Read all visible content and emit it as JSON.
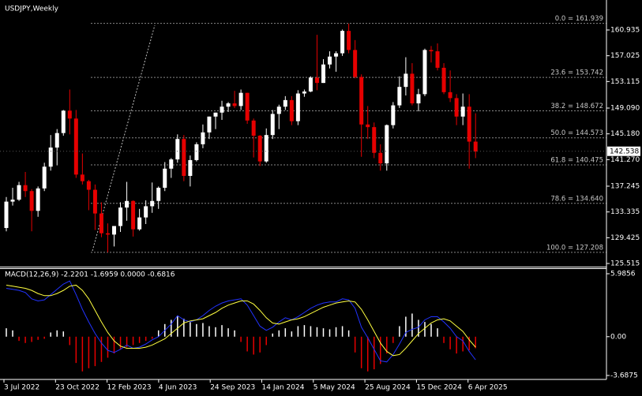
{
  "chart_data": [
    {
      "type": "candlestick",
      "title": "USDJPY,Weekly",
      "up_color": "#ffffff",
      "down_color": "#e60000",
      "ylim": [
        125.16,
        165.48
      ],
      "yticks": [
        160.935,
        157.025,
        153.115,
        {
          "value": 149.09,
          "label": "149.090"
        },
        {
          "value": 145.18,
          "label": "145.180"
        },
        {
          "value": 141.27,
          "label": "141.270"
        },
        137.245,
        133.335,
        129.425,
        125.515
      ],
      "last_price": 142.538,
      "x_labels": [
        "3 Jul 2022",
        "23 Oct 2022",
        "12 Feb 2023",
        "4 Jun 2023",
        "24 Sep 2023",
        "14 Jan 2024",
        "5 May 2024",
        "25 Aug 2024",
        "15 Dec 2024",
        "6 Apr 2025"
      ],
      "fib": [
        {
          "label": "0.0 = 161.939",
          "value": 161.939
        },
        {
          "label": "23.6 = 153.742",
          "value": 153.742
        },
        {
          "label": "38.2 = 148.672",
          "value": 148.672
        },
        {
          "label": "50.0 = 144.573",
          "value": 144.573
        },
        {
          "label": "61.8 = 140.475",
          "value": 140.475
        },
        {
          "label": "78.6 = 134.640",
          "value": 134.64
        },
        {
          "label": "100.0 = 127.208",
          "value": 127.208
        }
      ],
      "candles": [
        [
          130.9,
          135.6,
          130.4,
          134.9
        ],
        [
          134.9,
          137.0,
          134.3,
          135.2
        ],
        [
          135.2,
          137.9,
          135.0,
          137.4
        ],
        [
          137.4,
          139.4,
          135.6,
          136.5
        ],
        [
          136.5,
          136.8,
          130.4,
          133.5
        ],
        [
          133.5,
          137.2,
          132.6,
          136.9
        ],
        [
          136.9,
          140.8,
          136.5,
          140.2
        ],
        [
          140.2,
          145.0,
          139.6,
          143.1
        ],
        [
          143.1,
          145.9,
          140.4,
          145.3
        ],
        [
          145.3,
          148.8,
          144.9,
          148.7
        ],
        [
          148.7,
          151.9,
          145.1,
          147.5
        ],
        [
          147.5,
          148.8,
          138.5,
          139.0
        ],
        [
          139.0,
          142.2,
          137.5,
          138.0
        ],
        [
          138.0,
          138.2,
          133.6,
          136.7
        ],
        [
          136.7,
          137.5,
          130.6,
          133.1
        ],
        [
          133.1,
          134.8,
          129.5,
          130.1
        ],
        [
          130.1,
          131.6,
          127.2,
          129.9
        ],
        [
          129.9,
          131.2,
          128.1,
          131.2
        ],
        [
          131.2,
          134.8,
          130.3,
          134.0
        ],
        [
          134.0,
          137.9,
          132.0,
          135.0
        ],
        [
          135.0,
          135.1,
          129.6,
          130.7
        ],
        [
          130.7,
          133.8,
          130.5,
          132.5
        ],
        [
          132.5,
          135.1,
          131.5,
          134.2
        ],
        [
          134.2,
          137.8,
          133.2,
          135.0
        ],
        [
          135.0,
          137.2,
          133.8,
          137.0
        ],
        [
          137.0,
          140.9,
          136.5,
          139.9
        ],
        [
          139.9,
          141.5,
          138.5,
          141.3
        ],
        [
          141.3,
          145.1,
          140.8,
          144.4
        ],
        [
          144.4,
          145.0,
          138.0,
          138.8
        ],
        [
          138.8,
          141.9,
          137.2,
          141.2
        ],
        [
          141.2,
          143.9,
          141.0,
          143.6
        ],
        [
          143.6,
          146.6,
          143.0,
          145.4
        ],
        [
          145.4,
          147.8,
          144.4,
          147.8
        ],
        [
          147.8,
          148.4,
          145.9,
          148.4
        ],
        [
          148.4,
          150.2,
          147.3,
          149.3
        ],
        [
          149.3,
          150.0,
          148.5,
          149.8
        ],
        [
          149.8,
          151.7,
          149.1,
          149.4
        ],
        [
          149.4,
          151.9,
          148.8,
          151.4
        ],
        [
          151.4,
          151.4,
          146.7,
          147.2
        ],
        [
          147.2,
          147.5,
          141.6,
          144.9
        ],
        [
          144.9,
          145.0,
          140.3,
          141.0
        ],
        [
          141.0,
          146.0,
          140.8,
          145.0
        ],
        [
          145.0,
          148.8,
          144.4,
          148.2
        ],
        [
          148.2,
          149.6,
          145.9,
          149.3
        ],
        [
          149.3,
          150.9,
          148.8,
          150.3
        ],
        [
          150.3,
          150.9,
          146.5,
          147.1
        ],
        [
          147.1,
          151.8,
          146.5,
          151.3
        ],
        [
          151.3,
          151.9,
          150.8,
          151.6
        ],
        [
          151.6,
          153.9,
          151.5,
          153.7
        ],
        [
          153.7,
          160.2,
          151.8,
          152.9
        ],
        [
          152.9,
          156.5,
          152.9,
          155.7
        ],
        [
          155.7,
          157.7,
          155.1,
          156.9
        ],
        [
          156.9,
          157.7,
          154.6,
          157.4
        ],
        [
          157.4,
          161.0,
          157.0,
          160.8
        ],
        [
          160.8,
          161.9,
          157.4,
          157.9
        ],
        [
          157.9,
          159.4,
          153.6,
          153.8
        ],
        [
          153.8,
          154.2,
          141.7,
          146.6
        ],
        [
          146.6,
          149.4,
          144.4,
          146.2
        ],
        [
          146.2,
          146.9,
          141.5,
          142.3
        ],
        [
          142.3,
          143.6,
          139.6,
          140.7
        ],
        [
          140.7,
          146.6,
          139.6,
          146.5
        ],
        [
          146.5,
          150.0,
          146.0,
          149.5
        ],
        [
          149.5,
          153.9,
          149.1,
          152.3
        ],
        [
          152.3,
          156.8,
          151.0,
          154.3
        ],
        [
          154.3,
          155.9,
          149.5,
          149.8
        ],
        [
          149.8,
          152.0,
          148.6,
          151.2
        ],
        [
          151.2,
          158.1,
          150.9,
          157.9
        ],
        [
          157.9,
          158.5,
          156.0,
          157.7
        ],
        [
          157.7,
          158.9,
          154.8,
          155.2
        ],
        [
          155.2,
          155.9,
          151.2,
          151.5
        ],
        [
          151.5,
          154.8,
          150.0,
          150.6
        ],
        [
          150.6,
          151.2,
          146.5,
          147.8
        ],
        [
          147.8,
          151.3,
          146.5,
          149.3
        ],
        [
          149.3,
          151.2,
          139.9,
          144.0
        ],
        [
          144.0,
          148.3,
          141.5,
          142.5
        ]
      ]
    },
    {
      "type": "macd",
      "title": "MACD(12,26,9) -2.2201 -1.6959 0.0000 -0.6816",
      "ylim": [
        -3.99,
        6.51
      ],
      "yticks": [
        5.9856,
        {
          "value": 0,
          "label": "0.00"
        },
        -3.6875
      ],
      "histogram": {
        "up_color": "#ffffff",
        "down_color": "#e60000",
        "values": [
          0.8,
          0.6,
          -0.4,
          -0.6,
          -0.5,
          -0.3,
          -0.2,
          0.4,
          0.6,
          0.5,
          -0.8,
          -2.5,
          -3.3,
          -3.0,
          -2.8,
          -2.4,
          -2.0,
          -1.6,
          -1.2,
          -1.0,
          -0.8,
          -0.6,
          -0.4,
          -0.2,
          0.6,
          1.2,
          1.6,
          2.0,
          1.7,
          1.4,
          1.2,
          1.3,
          1.0,
          0.9,
          1.1,
          0.8,
          0.6,
          -0.5,
          -1.4,
          -1.7,
          -1.5,
          -0.8,
          0.3,
          0.6,
          0.8,
          0.5,
          1.0,
          1.1,
          1.0,
          0.9,
          0.8,
          0.7,
          0.9,
          1.0,
          0.6,
          -1.5,
          -3.0,
          -3.3,
          -3.1,
          -2.6,
          -1.6,
          -0.6,
          1.0,
          1.9,
          2.2,
          1.6,
          1.4,
          1.2,
          0.8,
          -0.6,
          -1.2,
          -1.6,
          -1.4,
          -1.3,
          -1.1
        ]
      },
      "series": [
        {
          "color": "#2233ff",
          "values": [
            4.6,
            4.5,
            4.4,
            4.2,
            3.6,
            3.4,
            3.5,
            4.0,
            4.5,
            5.0,
            5.3,
            4.0,
            2.6,
            1.4,
            0.3,
            -0.6,
            -1.3,
            -1.5,
            -1.2,
            -0.8,
            -1.1,
            -1.0,
            -0.7,
            -0.3,
            0.0,
            0.6,
            1.2,
            2.0,
            1.6,
            1.4,
            1.6,
            2.0,
            2.5,
            2.9,
            3.2,
            3.4,
            3.5,
            3.6,
            3.0,
            2.0,
            1.0,
            0.6,
            0.9,
            1.4,
            1.8,
            1.6,
            1.9,
            2.3,
            2.7,
            3.0,
            3.2,
            3.3,
            3.3,
            3.6,
            3.5,
            2.7,
            0.9,
            -0.1,
            -1.2,
            -2.3,
            -2.4,
            -1.7,
            -0.7,
            0.4,
            0.7,
            0.9,
            1.6,
            1.9,
            1.9,
            1.4,
            0.8,
            0.0,
            -0.4,
            -1.4,
            -2.2
          ]
        },
        {
          "color": "#ffff40",
          "values": [
            4.9,
            4.8,
            4.7,
            4.6,
            4.4,
            4.1,
            3.9,
            3.9,
            4.1,
            4.4,
            4.8,
            4.9,
            4.4,
            3.6,
            2.5,
            1.4,
            0.4,
            -0.4,
            -0.9,
            -1.1,
            -1.1,
            -1.1,
            -1.0,
            -0.8,
            -0.5,
            -0.2,
            0.3,
            0.8,
            1.3,
            1.5,
            1.6,
            1.7,
            2.0,
            2.3,
            2.7,
            3.0,
            3.2,
            3.4,
            3.4,
            3.1,
            2.5,
            1.8,
            1.3,
            1.2,
            1.4,
            1.6,
            1.7,
            1.9,
            2.2,
            2.5,
            2.8,
            3.0,
            3.2,
            3.3,
            3.4,
            3.3,
            2.6,
            1.6,
            0.5,
            -0.6,
            -1.4,
            -1.8,
            -1.7,
            -1.1,
            -0.4,
            0.3,
            0.8,
            1.3,
            1.6,
            1.7,
            1.5,
            1.0,
            0.5,
            -0.3,
            -1.0
          ]
        }
      ]
    }
  ]
}
